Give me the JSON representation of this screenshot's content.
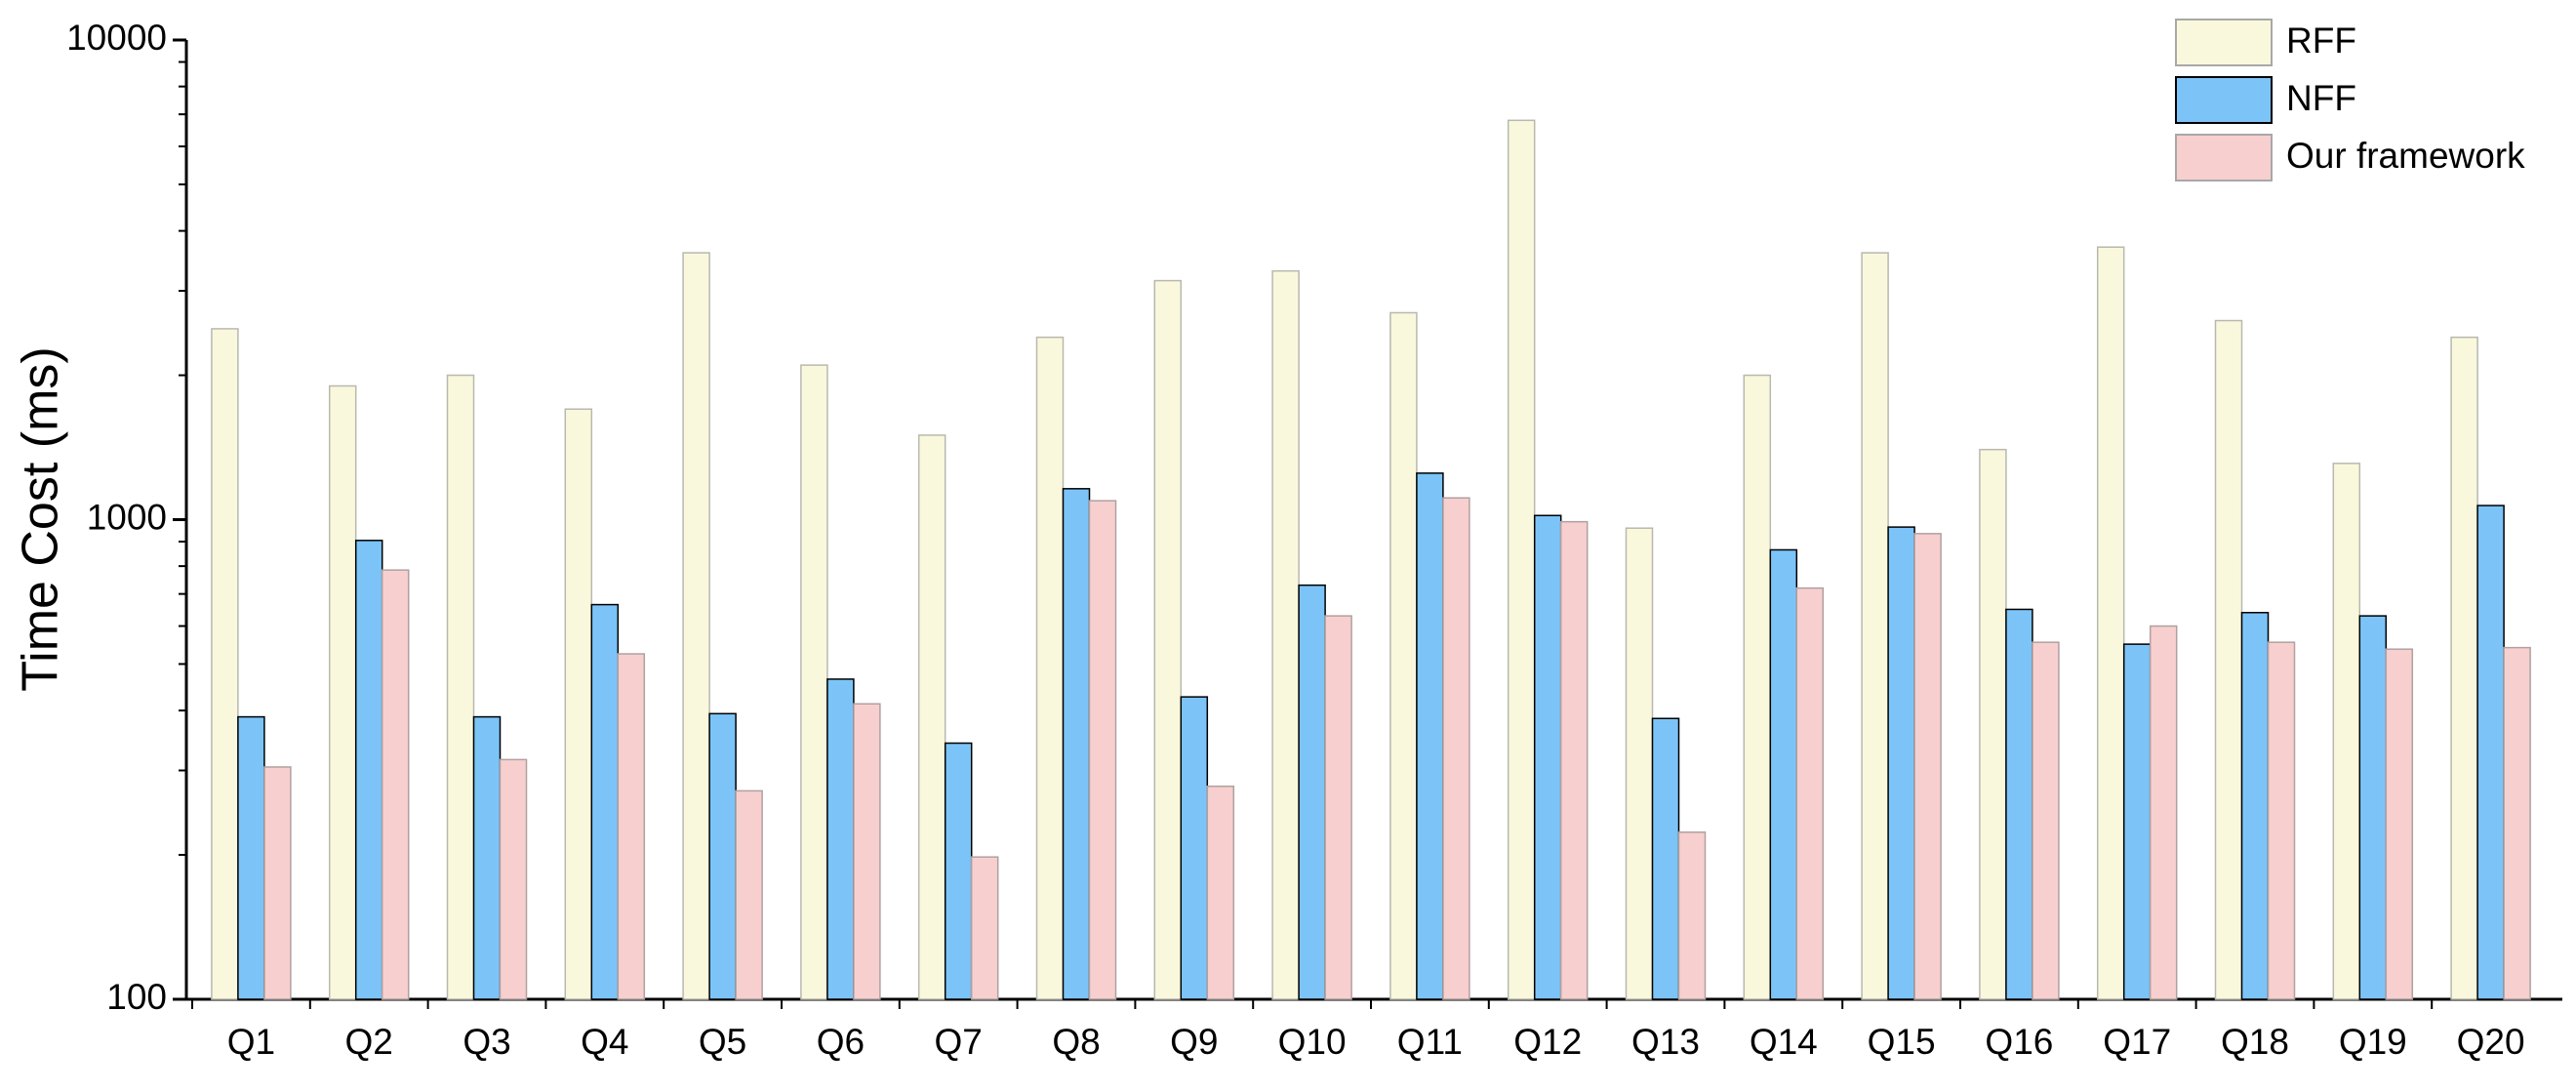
{
  "chart_data": {
    "type": "bar",
    "y_label": "Time Cost (ms)",
    "log_scale": true,
    "legend": "top-right",
    "categories": [
      "Q1",
      "Q2",
      "Q3",
      "Q4",
      "Q5",
      "Q6",
      "Q7",
      "Q8",
      "Q9",
      "Q10",
      "Q11",
      "Q12",
      "Q13",
      "Q14",
      "Q15",
      "Q16",
      "Q17",
      "Q18",
      "Q19",
      "Q20"
    ],
    "series": [
      {
        "name": "RFF",
        "color": "#faf8dc",
        "stroke": "#b8b8b0",
        "values": [
          2500,
          1900,
          2000,
          1700,
          3600,
          2100,
          1500,
          2400,
          3150,
          3300,
          2700,
          6800,
          960,
          2000,
          3600,
          1400,
          3700,
          2600,
          1310,
          2400
        ]
      },
      {
        "name": "NFF",
        "color": "#7cc4f8",
        "stroke": "#000000",
        "values": [
          388,
          905,
          388,
          665,
          394,
          465,
          342,
          1160,
          427,
          730,
          1250,
          1020,
          385,
          865,
          965,
          650,
          550,
          640,
          630,
          1070
        ]
      },
      {
        "name": "Our framework",
        "color": "#f8cfcf",
        "stroke": "#b0a0a0",
        "values": [
          305,
          785,
          316,
          525,
          272,
          413,
          198,
          1095,
          278,
          630,
          1110,
          990,
          223,
          720,
          935,
          555,
          600,
          555,
          537,
          541
        ]
      }
    ],
    "ylim": [
      100,
      10000
    ],
    "yticks": [
      100,
      1000,
      10000
    ],
    "yticks_minor": [
      200,
      300,
      400,
      500,
      600,
      700,
      800,
      900,
      2000,
      3000,
      4000,
      5000,
      6000,
      7000,
      8000,
      9000
    ]
  }
}
